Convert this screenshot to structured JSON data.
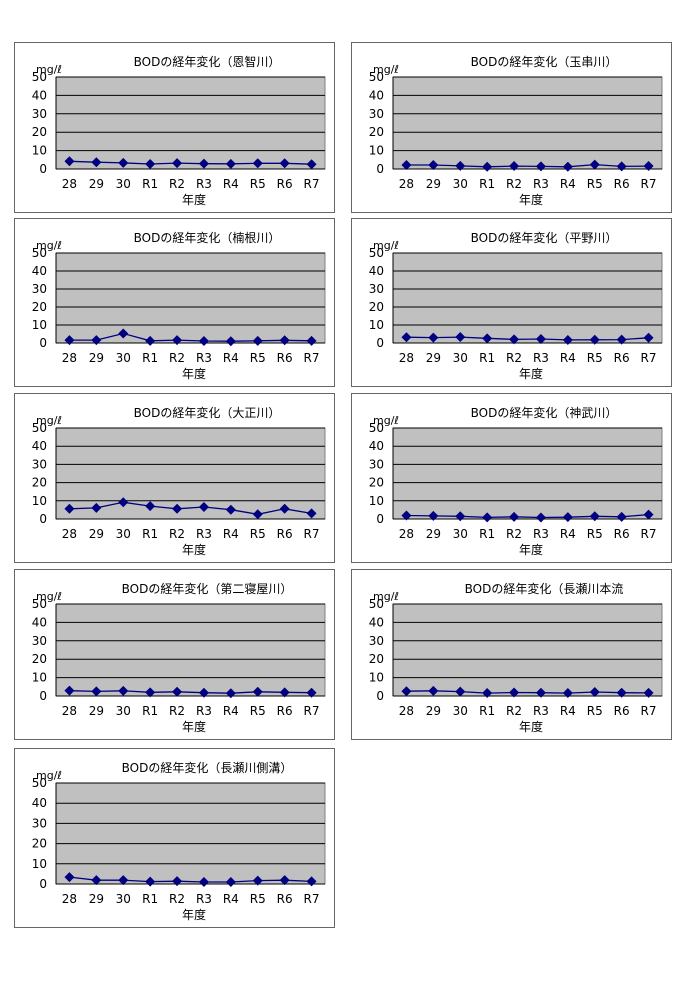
{
  "colors": {
    "series": "#000080",
    "plot_background": "#c0c0c0",
    "plot_border": "#808080",
    "gridline": "#000000",
    "panel_border": "#666666"
  },
  "chart_data": [
    {
      "type": "line",
      "title": "BODの経年変化（恩智川）",
      "ylabel": "mg/ℓ",
      "xlabel": "年度",
      "categories": [
        "28",
        "29",
        "30",
        "R1",
        "R2",
        "R3",
        "R4",
        "R5",
        "R6",
        "R7"
      ],
      "series": [
        {
          "values": [
            4.2,
            3.7,
            3.3,
            2.7,
            3.2,
            2.9,
            2.8,
            3.1,
            3.1,
            2.6
          ]
        }
      ],
      "ylim": [
        0,
        50
      ],
      "yticks": [
        0,
        10,
        20,
        30,
        40,
        50
      ],
      "grid": true
    },
    {
      "type": "line",
      "title": "BODの経年変化（玉串川）",
      "ylabel": "mg/ℓ",
      "xlabel": "年度",
      "categories": [
        "28",
        "29",
        "30",
        "R1",
        "R2",
        "R3",
        "R4",
        "R5",
        "R6",
        "R7"
      ],
      "series": [
        {
          "values": [
            2.2,
            2.2,
            1.7,
            1.2,
            1.6,
            1.4,
            1.2,
            2.4,
            1.4,
            1.6
          ]
        }
      ],
      "ylim": [
        0,
        50
      ],
      "yticks": [
        0,
        10,
        20,
        30,
        40,
        50
      ],
      "grid": true
    },
    {
      "type": "line",
      "title": "BODの経年変化（楠根川）",
      "ylabel": "mg/ℓ",
      "xlabel": "年度",
      "categories": [
        "28",
        "29",
        "30",
        "R1",
        "R2",
        "R3",
        "R4",
        "R5",
        "R6",
        "R7"
      ],
      "series": [
        {
          "values": [
            1.6,
            1.6,
            5.3,
            1.2,
            1.6,
            1.1,
            1.0,
            1.2,
            1.5,
            1.2
          ]
        }
      ],
      "ylim": [
        0,
        50
      ],
      "yticks": [
        0,
        10,
        20,
        30,
        40,
        50
      ],
      "grid": true
    },
    {
      "type": "line",
      "title": "BODの経年変化（平野川）",
      "ylabel": "mg/ℓ",
      "xlabel": "年度",
      "categories": [
        "28",
        "29",
        "30",
        "R1",
        "R2",
        "R3",
        "R4",
        "R5",
        "R6",
        "R7"
      ],
      "series": [
        {
          "values": [
            3.2,
            3.0,
            3.3,
            2.6,
            2.0,
            2.2,
            1.7,
            1.8,
            1.9,
            2.9
          ]
        }
      ],
      "ylim": [
        0,
        50
      ],
      "yticks": [
        0,
        10,
        20,
        30,
        40,
        50
      ],
      "grid": true
    },
    {
      "type": "line",
      "title": "BODの経年変化（大正川）",
      "ylabel": "mg/ℓ",
      "xlabel": "年度",
      "categories": [
        "28",
        "29",
        "30",
        "R1",
        "R2",
        "R3",
        "R4",
        "R5",
        "R6",
        "R7"
      ],
      "series": [
        {
          "values": [
            5.6,
            6.1,
            9.2,
            7.1,
            5.6,
            6.6,
            5.1,
            2.6,
            5.6,
            3.1
          ]
        }
      ],
      "ylim": [
        0,
        50
      ],
      "yticks": [
        0,
        10,
        20,
        30,
        40,
        50
      ],
      "grid": true
    },
    {
      "type": "line",
      "title": "BODの経年変化（神武川）",
      "ylabel": "mg/ℓ",
      "xlabel": "年度",
      "categories": [
        "28",
        "29",
        "30",
        "R1",
        "R2",
        "R3",
        "R4",
        "R5",
        "R6",
        "R7"
      ],
      "series": [
        {
          "values": [
            1.9,
            1.7,
            1.5,
            0.9,
            1.2,
            0.8,
            1.0,
            1.5,
            1.2,
            2.4
          ]
        }
      ],
      "ylim": [
        0,
        50
      ],
      "yticks": [
        0,
        10,
        20,
        30,
        40,
        50
      ],
      "grid": true
    },
    {
      "type": "line",
      "title": "BODの経年変化（第二寝屋川）",
      "ylabel": "mg/ℓ",
      "xlabel": "年度",
      "categories": [
        "28",
        "29",
        "30",
        "R1",
        "R2",
        "R3",
        "R4",
        "R5",
        "R6",
        "R7"
      ],
      "series": [
        {
          "values": [
            2.9,
            2.5,
            2.8,
            2.0,
            2.3,
            1.8,
            1.5,
            2.3,
            2.0,
            1.8
          ]
        }
      ],
      "ylim": [
        0,
        50
      ],
      "yticks": [
        0,
        10,
        20,
        30,
        40,
        50
      ],
      "grid": true
    },
    {
      "type": "line",
      "title": "BODの経年変化（長瀬川本流",
      "ylabel": "mg/ℓ",
      "xlabel": "年度",
      "categories": [
        "28",
        "29",
        "30",
        "R1",
        "R2",
        "R3",
        "R4",
        "R5",
        "R6",
        "R7"
      ],
      "series": [
        {
          "values": [
            2.6,
            2.8,
            2.4,
            1.6,
            1.9,
            1.8,
            1.6,
            2.2,
            1.8,
            1.7
          ]
        }
      ],
      "ylim": [
        0,
        50
      ],
      "yticks": [
        0,
        10,
        20,
        30,
        40,
        50
      ],
      "grid": true
    },
    {
      "type": "line",
      "title": "BODの経年変化（長瀬川側溝）",
      "ylabel": "mg/ℓ",
      "xlabel": "年度",
      "categories": [
        "28",
        "29",
        "30",
        "R1",
        "R2",
        "R3",
        "R4",
        "R5",
        "R6",
        "R7"
      ],
      "series": [
        {
          "values": [
            3.4,
            1.9,
            1.9,
            1.2,
            1.4,
            1.0,
            1.0,
            1.7,
            1.9,
            1.3
          ]
        }
      ],
      "ylim": [
        0,
        50
      ],
      "yticks": [
        0,
        10,
        20,
        30,
        40,
        50
      ],
      "grid": true
    }
  ]
}
